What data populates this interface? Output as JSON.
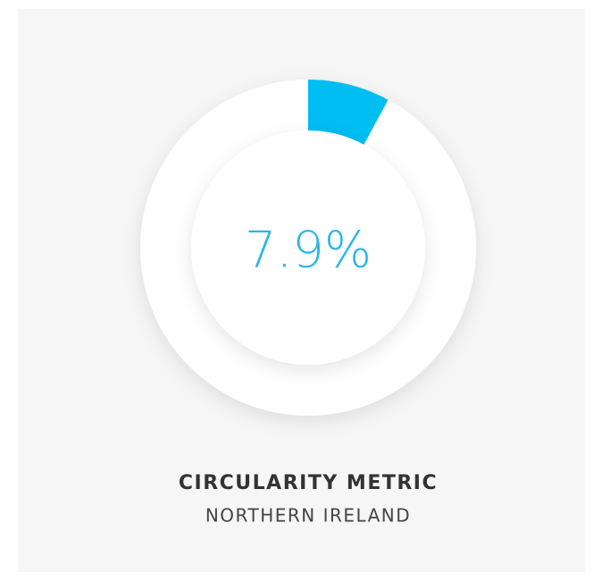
{
  "chart_data": {
    "type": "donut",
    "title": "CIRCULARITY METRIC",
    "subtitle": "NORTHERN IRELAND",
    "values": [
      7.9
    ],
    "value_labels": [
      "7.9%"
    ],
    "color": "#00bdf2",
    "ylim": [
      0,
      100
    ]
  }
}
